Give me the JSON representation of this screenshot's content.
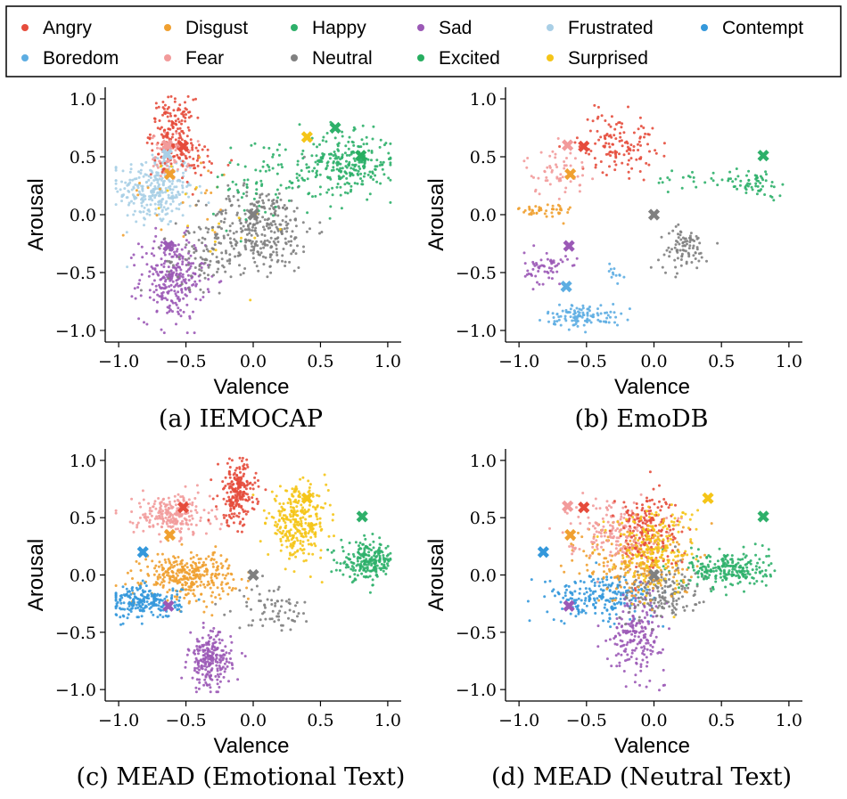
{
  "legend": {
    "items": [
      {
        "label": "Angry",
        "color": "#e64c3c"
      },
      {
        "label": "Disgust",
        "color": "#f0a030"
      },
      {
        "label": "Happy",
        "color": "#2eb06a"
      },
      {
        "label": "Sad",
        "color": "#9b59b6"
      },
      {
        "label": "Frustrated",
        "color": "#a9cfe6"
      },
      {
        "label": "Contempt",
        "color": "#3498db"
      },
      {
        "label": "Boredom",
        "color": "#5dade2"
      },
      {
        "label": "Fear",
        "color": "#f29b9b"
      },
      {
        "label": "Neutral",
        "color": "#808080"
      },
      {
        "label": "Excited",
        "color": "#27ae60"
      },
      {
        "label": "Surprised",
        "color": "#f5c518"
      }
    ]
  },
  "chart_data": [
    {
      "type": "scatter",
      "caption": "(a) IEMOCAP",
      "xlabel": "Valence",
      "ylabel": "Arousal",
      "xlim": [
        -1.1,
        1.1
      ],
      "ylim": [
        -1.1,
        1.1
      ],
      "xticks": [
        "−1.0",
        "−0.5",
        "0.0",
        "0.5",
        "1.0"
      ],
      "yticks": [
        "−1.0",
        "−0.5",
        "0.0",
        "0.5",
        "1.0"
      ],
      "grid": false,
      "series": [
        {
          "name": "Frustrated",
          "color": "#a9cfe6",
          "clusters": [
            {
              "cx": -0.72,
              "cy": 0.22,
              "sx": 0.14,
              "sy": 0.16,
              "n": 300
            }
          ]
        },
        {
          "name": "Angry",
          "color": "#e64c3c",
          "clusters": [
            {
              "cx": -0.6,
              "cy": 0.72,
              "sx": 0.08,
              "sy": 0.14,
              "n": 170
            },
            {
              "cx": -0.45,
              "cy": 0.45,
              "sx": 0.15,
              "sy": 0.1,
              "n": 50
            }
          ]
        },
        {
          "name": "Fear",
          "color": "#f29b9b",
          "clusters": [
            {
              "cx": -0.62,
              "cy": 0.5,
              "sx": 0.07,
              "sy": 0.1,
              "n": 45
            }
          ]
        },
        {
          "name": "Disgust",
          "color": "#f0a030",
          "clusters": [
            {
              "cx": -0.55,
              "cy": 0.2,
              "sx": 0.2,
              "sy": 0.2,
              "n": 25
            }
          ]
        },
        {
          "name": "Sad",
          "color": "#9b59b6",
          "clusters": [
            {
              "cx": -0.6,
              "cy": -0.55,
              "sx": 0.12,
              "sy": 0.18,
              "n": 280
            }
          ]
        },
        {
          "name": "Neutral",
          "color": "#808080",
          "clusters": [
            {
              "cx": 0.05,
              "cy": -0.12,
              "sx": 0.2,
              "sy": 0.18,
              "n": 330
            },
            {
              "cx": -0.35,
              "cy": -0.4,
              "sx": 0.15,
              "sy": 0.12,
              "n": 80
            }
          ]
        },
        {
          "name": "Happy",
          "color": "#2eb06a",
          "clusters": [
            {
              "cx": 0.72,
              "cy": 0.45,
              "sx": 0.16,
              "sy": 0.12,
              "n": 240
            },
            {
              "cx": 0.2,
              "cy": 0.3,
              "sx": 0.25,
              "sy": 0.2,
              "n": 110
            }
          ]
        },
        {
          "name": "Surprised",
          "color": "#f5c518",
          "clusters": [
            {
              "cx": -0.2,
              "cy": 0.0,
              "sx": 0.3,
              "sy": 0.3,
              "n": 18
            }
          ]
        }
      ],
      "centroids": [
        {
          "name": "Angry",
          "color": "#e64c3c",
          "x": -0.52,
          "y": 0.59
        },
        {
          "name": "Fear",
          "color": "#f29b9b",
          "x": -0.64,
          "y": 0.6
        },
        {
          "name": "Disgust",
          "color": "#f0a030",
          "x": -0.62,
          "y": 0.35
        },
        {
          "name": "Sad",
          "color": "#9b59b6",
          "x": -0.63,
          "y": -0.27
        },
        {
          "name": "Neutral",
          "color": "#808080",
          "x": 0.0,
          "y": 0.0
        },
        {
          "name": "Surprised",
          "color": "#f5c518",
          "x": 0.4,
          "y": 0.67
        },
        {
          "name": "Happy",
          "color": "#2eb06a",
          "x": 0.61,
          "y": 0.75
        },
        {
          "name": "Excited",
          "color": "#27ae60",
          "x": 0.8,
          "y": 0.51
        },
        {
          "name": "Frustrated",
          "color": "#a9cfe6",
          "x": -0.64,
          "y": 0.52
        }
      ]
    },
    {
      "type": "scatter",
      "caption": "(b) EmoDB",
      "xlabel": "Valence",
      "ylabel": "Arousal",
      "xlim": [
        -1.1,
        1.1
      ],
      "ylim": [
        -1.1,
        1.1
      ],
      "xticks": [
        "−1.0",
        "−0.5",
        "0.0",
        "0.5",
        "1.0"
      ],
      "yticks": [
        "−1.0",
        "−0.5",
        "0.0",
        "0.5",
        "1.0"
      ],
      "grid": false,
      "series": [
        {
          "name": "Angry",
          "color": "#e64c3c",
          "clusters": [
            {
              "cx": -0.28,
              "cy": 0.62,
              "sx": 0.14,
              "sy": 0.13,
              "n": 130
            }
          ]
        },
        {
          "name": "Fear",
          "color": "#f29b9b",
          "clusters": [
            {
              "cx": -0.72,
              "cy": 0.37,
              "sx": 0.12,
              "sy": 0.1,
              "n": 60
            }
          ]
        },
        {
          "name": "Disgust",
          "color": "#f0a030",
          "clusters": [
            {
              "cx": -0.8,
              "cy": 0.03,
              "sx": 0.1,
              "sy": 0.04,
              "n": 45
            }
          ]
        },
        {
          "name": "Sad",
          "color": "#9b59b6",
          "clusters": [
            {
              "cx": -0.8,
              "cy": -0.46,
              "sx": 0.08,
              "sy": 0.07,
              "n": 60
            }
          ]
        },
        {
          "name": "Boredom",
          "color": "#5dade2",
          "clusters": [
            {
              "cx": -0.52,
              "cy": -0.87,
              "sx": 0.14,
              "sy": 0.05,
              "n": 110
            },
            {
              "cx": -0.3,
              "cy": -0.5,
              "sx": 0.04,
              "sy": 0.06,
              "n": 12
            }
          ]
        },
        {
          "name": "Neutral",
          "color": "#808080",
          "clusters": [
            {
              "cx": 0.22,
              "cy": -0.3,
              "sx": 0.09,
              "sy": 0.09,
              "n": 90
            }
          ]
        },
        {
          "name": "Happy",
          "color": "#2eb06a",
          "clusters": [
            {
              "cx": 0.75,
              "cy": 0.28,
              "sx": 0.12,
              "sy": 0.06,
              "n": 60
            },
            {
              "cx": 0.25,
              "cy": 0.3,
              "sx": 0.12,
              "sy": 0.05,
              "n": 20
            }
          ]
        }
      ],
      "centroids": [
        {
          "name": "Angry",
          "color": "#e64c3c",
          "x": -0.52,
          "y": 0.59
        },
        {
          "name": "Fear",
          "color": "#f29b9b",
          "x": -0.64,
          "y": 0.6
        },
        {
          "name": "Disgust",
          "color": "#f0a030",
          "x": -0.62,
          "y": 0.35
        },
        {
          "name": "Neutral",
          "color": "#808080",
          "x": 0.0,
          "y": 0.0
        },
        {
          "name": "Sad",
          "color": "#9b59b6",
          "x": -0.63,
          "y": -0.27
        },
        {
          "name": "Boredom",
          "color": "#5dade2",
          "x": -0.65,
          "y": -0.62
        },
        {
          "name": "Happy",
          "color": "#2eb06a",
          "x": 0.81,
          "y": 0.51
        }
      ]
    },
    {
      "type": "scatter",
      "caption": "(c) MEAD (Emotional Text)",
      "xlabel": "Valence",
      "ylabel": "Arousal",
      "xlim": [
        -1.1,
        1.1
      ],
      "ylim": [
        -1.1,
        1.1
      ],
      "xticks": [
        "−1.0",
        "−0.5",
        "0.0",
        "0.5",
        "1.0"
      ],
      "yticks": [
        "−1.0",
        "−0.5",
        "0.0",
        "0.5",
        "1.0"
      ],
      "grid": false,
      "series": [
        {
          "name": "Fear",
          "color": "#f29b9b",
          "clusters": [
            {
              "cx": -0.6,
              "cy": 0.52,
              "sx": 0.14,
              "sy": 0.09,
              "n": 230
            }
          ]
        },
        {
          "name": "Angry",
          "color": "#e64c3c",
          "clusters": [
            {
              "cx": -0.12,
              "cy": 0.72,
              "sx": 0.07,
              "sy": 0.14,
              "n": 220
            }
          ]
        },
        {
          "name": "Surprised",
          "color": "#f5c518",
          "clusters": [
            {
              "cx": 0.33,
              "cy": 0.45,
              "sx": 0.11,
              "sy": 0.15,
              "n": 300
            }
          ]
        },
        {
          "name": "Happy",
          "color": "#2eb06a",
          "clusters": [
            {
              "cx": 0.85,
              "cy": 0.12,
              "sx": 0.1,
              "sy": 0.08,
              "n": 220
            }
          ]
        },
        {
          "name": "Disgust",
          "color": "#f0a030",
          "clusters": [
            {
              "cx": -0.48,
              "cy": 0.0,
              "sx": 0.17,
              "sy": 0.1,
              "n": 330
            }
          ]
        },
        {
          "name": "Contempt",
          "color": "#3498db",
          "clusters": [
            {
              "cx": -0.8,
              "cy": -0.24,
              "sx": 0.13,
              "sy": 0.07,
              "n": 230
            }
          ]
        },
        {
          "name": "Sad",
          "color": "#9b59b6",
          "clusters": [
            {
              "cx": -0.32,
              "cy": -0.75,
              "sx": 0.08,
              "sy": 0.12,
              "n": 230
            }
          ]
        },
        {
          "name": "Neutral",
          "color": "#808080",
          "clusters": [
            {
              "cx": 0.15,
              "cy": -0.28,
              "sx": 0.14,
              "sy": 0.1,
              "n": 70
            }
          ]
        }
      ],
      "centroids": [
        {
          "name": "Angry",
          "color": "#e64c3c",
          "x": -0.52,
          "y": 0.59
        },
        {
          "name": "Disgust",
          "color": "#f0a030",
          "x": -0.62,
          "y": 0.35
        },
        {
          "name": "Contempt",
          "color": "#3498db",
          "x": -0.82,
          "y": 0.2
        },
        {
          "name": "Neutral",
          "color": "#808080",
          "x": 0.0,
          "y": 0.0
        },
        {
          "name": "Sad",
          "color": "#9b59b6",
          "x": -0.63,
          "y": -0.27
        },
        {
          "name": "Surprised",
          "color": "#f5c518",
          "x": 0.4,
          "y": 0.67
        },
        {
          "name": "Happy",
          "color": "#2eb06a",
          "x": 0.81,
          "y": 0.51
        }
      ]
    },
    {
      "type": "scatter",
      "caption": "(d) MEAD (Neutral Text)",
      "xlabel": "Valence",
      "ylabel": "Arousal",
      "xlim": [
        -1.1,
        1.1
      ],
      "ylim": [
        -1.1,
        1.1
      ],
      "xticks": [
        "−1.0",
        "−0.5",
        "0.0",
        "0.5",
        "1.0"
      ],
      "yticks": [
        "−1.0",
        "−0.5",
        "0.0",
        "0.5",
        "1.0"
      ],
      "grid": false,
      "series": [
        {
          "name": "Contempt",
          "color": "#3498db",
          "clusters": [
            {
              "cx": -0.4,
              "cy": -0.2,
              "sx": 0.2,
              "sy": 0.1,
              "n": 220
            }
          ]
        },
        {
          "name": "Sad",
          "color": "#9b59b6",
          "clusters": [
            {
              "cx": -0.12,
              "cy": -0.5,
              "sx": 0.1,
              "sy": 0.17,
              "n": 200
            }
          ]
        },
        {
          "name": "Neutral",
          "color": "#808080",
          "clusters": [
            {
              "cx": 0.05,
              "cy": -0.15,
              "sx": 0.15,
              "sy": 0.12,
              "n": 180
            }
          ]
        },
        {
          "name": "Happy",
          "color": "#2eb06a",
          "clusters": [
            {
              "cx": 0.55,
              "cy": 0.05,
              "sx": 0.15,
              "sy": 0.08,
              "n": 230
            }
          ]
        },
        {
          "name": "Disgust",
          "color": "#f0a030",
          "clusters": [
            {
              "cx": -0.12,
              "cy": 0.12,
              "sx": 0.2,
              "sy": 0.18,
              "n": 250
            }
          ]
        },
        {
          "name": "Fear",
          "color": "#f29b9b",
          "clusters": [
            {
              "cx": -0.3,
              "cy": 0.4,
              "sx": 0.17,
              "sy": 0.13,
              "n": 180
            }
          ]
        },
        {
          "name": "Angry",
          "color": "#e64c3c",
          "clusters": [
            {
              "cx": -0.05,
              "cy": 0.4,
              "sx": 0.12,
              "sy": 0.17,
              "n": 180
            }
          ]
        },
        {
          "name": "Surprised",
          "color": "#f5c518",
          "clusters": [
            {
              "cx": 0.0,
              "cy": 0.25,
              "sx": 0.15,
              "sy": 0.18,
              "n": 200
            }
          ]
        }
      ],
      "centroids": [
        {
          "name": "Fear",
          "color": "#f29b9b",
          "x": -0.64,
          "y": 0.6
        },
        {
          "name": "Angry",
          "color": "#e64c3c",
          "x": -0.52,
          "y": 0.59
        },
        {
          "name": "Disgust",
          "color": "#f0a030",
          "x": -0.62,
          "y": 0.35
        },
        {
          "name": "Contempt",
          "color": "#3498db",
          "x": -0.82,
          "y": 0.2
        },
        {
          "name": "Neutral",
          "color": "#808080",
          "x": 0.0,
          "y": 0.0
        },
        {
          "name": "Sad",
          "color": "#9b59b6",
          "x": -0.63,
          "y": -0.27
        },
        {
          "name": "Surprised",
          "color": "#f5c518",
          "x": 0.4,
          "y": 0.67
        },
        {
          "name": "Happy",
          "color": "#2eb06a",
          "x": 0.81,
          "y": 0.51
        }
      ]
    }
  ]
}
